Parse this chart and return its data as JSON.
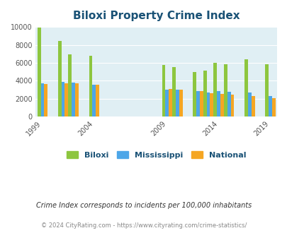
{
  "title": "Biloxi Property Crime Index",
  "years": [
    1999,
    2001,
    2002,
    2004,
    2009,
    2010,
    2012,
    2013,
    2014,
    2015,
    2017,
    2019
  ],
  "biloxi": [
    9900,
    8450,
    6950,
    6800,
    5750,
    5550,
    5000,
    5100,
    6000,
    5850,
    6350,
    5800
  ],
  "mississippi": [
    3700,
    3900,
    3800,
    3550,
    3000,
    3000,
    2850,
    2700,
    2850,
    2750,
    2650,
    2300
  ],
  "national": [
    3650,
    3700,
    3700,
    3550,
    3050,
    3000,
    2850,
    2600,
    2500,
    2450,
    2300,
    2050
  ],
  "biloxi_color": "#8dc63f",
  "ms_color": "#4da6e8",
  "nat_color": "#f5a623",
  "bg_color": "#e0eff4",
  "title_color": "#1a5276",
  "subtitle": "Crime Index corresponds to incidents per 100,000 inhabitants",
  "footer": "© 2024 CityRating.com - https://www.cityrating.com/crime-statistics/",
  "ylim": [
    0,
    10000
  ],
  "yticks": [
    0,
    2000,
    4000,
    6000,
    8000,
    10000
  ],
  "xtick_labels": [
    "1999",
    "2004",
    "2009",
    "2014",
    "2019"
  ],
  "xtick_year_positions": [
    1999,
    2004,
    2009,
    2014,
    2019
  ]
}
